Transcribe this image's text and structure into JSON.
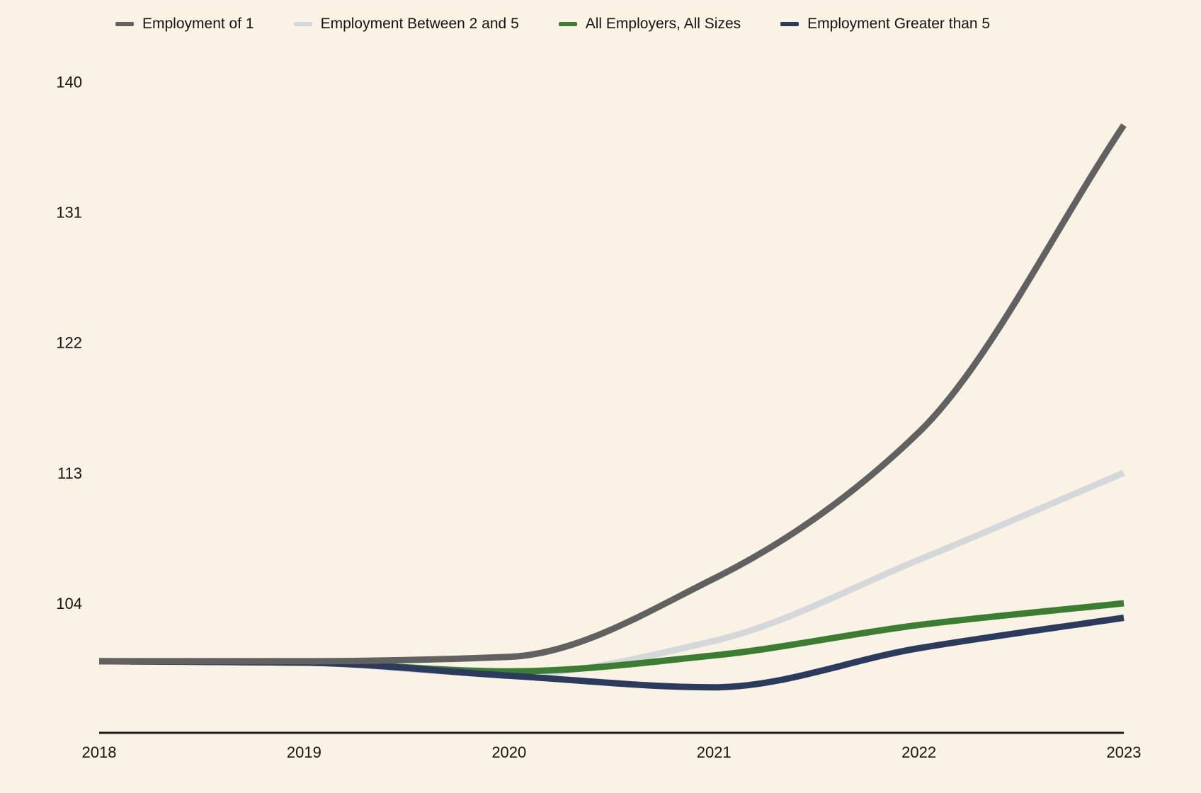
{
  "background_color": "#faf2e4",
  "chart_data": {
    "type": "line",
    "x": [
      2018,
      2019,
      2020,
      2021,
      2022,
      2023
    ],
    "series": [
      {
        "name": "Employment of 1",
        "color": "#616161",
        "values": [
          100,
          100,
          100.3,
          105.7,
          115.8,
          137
        ]
      },
      {
        "name": "Employment Between 2 and 5",
        "color": "#d4d8db",
        "values": [
          100,
          99.9,
          99.1,
          101.4,
          107,
          113
        ]
      },
      {
        "name": "All Employers, All Sizes",
        "color": "#3a7d33",
        "values": [
          100,
          99.9,
          99.3,
          100.4,
          102.5,
          104
        ]
      },
      {
        "name": "Employment Greater than 5",
        "color": "#2b3a5d",
        "values": [
          100,
          99.9,
          99.0,
          98.2,
          100.9,
          103
        ]
      }
    ],
    "title": "",
    "xlabel": "",
    "ylabel": "",
    "yticks": [
      104,
      113,
      122,
      131,
      140
    ],
    "xticks": [
      "2018",
      "2019",
      "2020",
      "2021",
      "2022",
      "2023"
    ],
    "ylim": [
      95.5,
      141.5
    ],
    "baseline_value": 100,
    "grid": false,
    "legend_position": "top",
    "axis_color": "#1a1a1a",
    "text_color": "#141414"
  }
}
